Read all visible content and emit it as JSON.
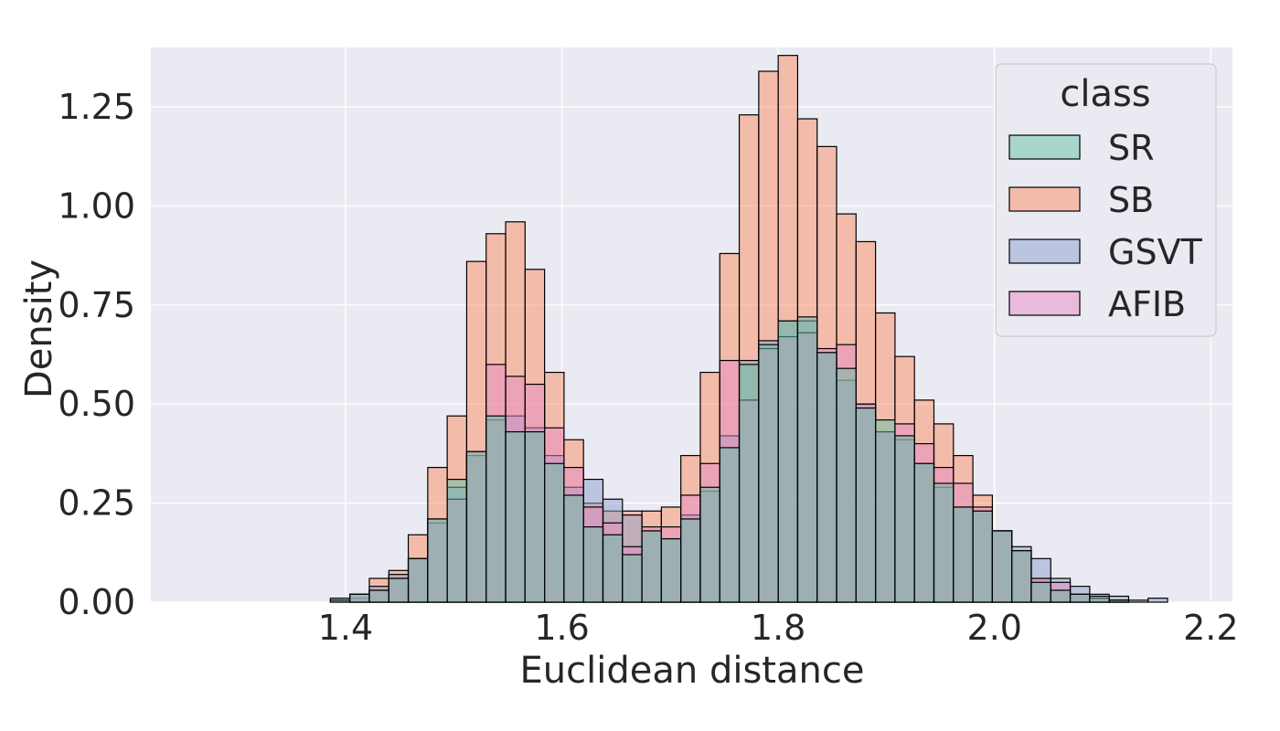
{
  "chart_data": {
    "type": "histogram",
    "xlabel": "Euclidean distance",
    "ylabel": "Density",
    "xlim": [
      1.22,
      2.22
    ],
    "ylim": [
      0,
      1.4
    ],
    "xticks": [
      "1.4",
      "1.6",
      "1.8",
      "2.0",
      "2.2"
    ],
    "yticks": [
      "0.00",
      "0.25",
      "0.50",
      "0.75",
      "1.00",
      "1.25"
    ],
    "grid": true,
    "legend_position": "top-right",
    "legend_title": "class",
    "bin_start": 1.26,
    "bin_width": 0.018,
    "series": [
      {
        "name": "SR",
        "color": "#66c2a5",
        "values": [
          0,
          0,
          0,
          0,
          0,
          0,
          0,
          0.005,
          0.02,
          0.03,
          0.06,
          0.11,
          0.21,
          0.31,
          0.38,
          0.47,
          0.43,
          0.43,
          0.35,
          0.27,
          0.19,
          0.17,
          0.12,
          0.18,
          0.16,
          0.21,
          0.29,
          0.39,
          0.6,
          0.65,
          0.71,
          0.72,
          0.63,
          0.59,
          0.49,
          0.46,
          0.42,
          0.35,
          0.3,
          0.24,
          0.23,
          0.18,
          0.13,
          0.05,
          0.03,
          0.02,
          0.015,
          0.005,
          0,
          0,
          0,
          0,
          0
        ]
      },
      {
        "name": "SB",
        "color": "#fc8d62",
        "values": [
          0,
          0,
          0,
          0,
          0,
          0,
          0,
          0,
          0.01,
          0.06,
          0.08,
          0.17,
          0.34,
          0.47,
          0.86,
          0.93,
          0.96,
          0.84,
          0.58,
          0.41,
          0.25,
          0.23,
          0.23,
          0.23,
          0.24,
          0.37,
          0.58,
          0.88,
          1.23,
          1.34,
          1.38,
          1.22,
          1.15,
          0.98,
          0.91,
          0.73,
          0.62,
          0.51,
          0.45,
          0.37,
          0.27,
          0.18,
          0.13,
          0.06,
          0.03,
          0.02,
          0.01,
          0.005,
          0,
          0,
          0,
          0,
          0
        ]
      },
      {
        "name": "GSVT",
        "color": "#8da0cb",
        "values": [
          0,
          0,
          0,
          0,
          0,
          0,
          0,
          0.01,
          0.02,
          0.04,
          0.07,
          0.11,
          0.2,
          0.29,
          0.37,
          0.46,
          0.47,
          0.44,
          0.37,
          0.29,
          0.31,
          0.26,
          0.22,
          0.18,
          0.16,
          0.22,
          0.28,
          0.42,
          0.61,
          0.66,
          0.71,
          0.71,
          0.63,
          0.56,
          0.5,
          0.43,
          0.41,
          0.35,
          0.29,
          0.24,
          0.23,
          0.18,
          0.14,
          0.11,
          0.06,
          0.04,
          0.02,
          0.015,
          0.005,
          0.01,
          0,
          0,
          0
        ]
      },
      {
        "name": "AFIB",
        "color": "#e78ac3",
        "values": [
          0,
          0,
          0,
          0,
          0,
          0,
          0,
          0,
          0.02,
          0.03,
          0.06,
          0.11,
          0.21,
          0.26,
          0.38,
          0.6,
          0.57,
          0.55,
          0.44,
          0.34,
          0.24,
          0.2,
          0.14,
          0.19,
          0.19,
          0.27,
          0.35,
          0.61,
          0.51,
          0.64,
          0.67,
          0.68,
          0.64,
          0.65,
          0.5,
          0.43,
          0.45,
          0.4,
          0.34,
          0.3,
          0.24,
          0.18,
          0.13,
          0.06,
          0.05,
          0.02,
          0.01,
          0.005,
          0,
          0,
          0,
          0,
          0
        ]
      }
    ]
  }
}
